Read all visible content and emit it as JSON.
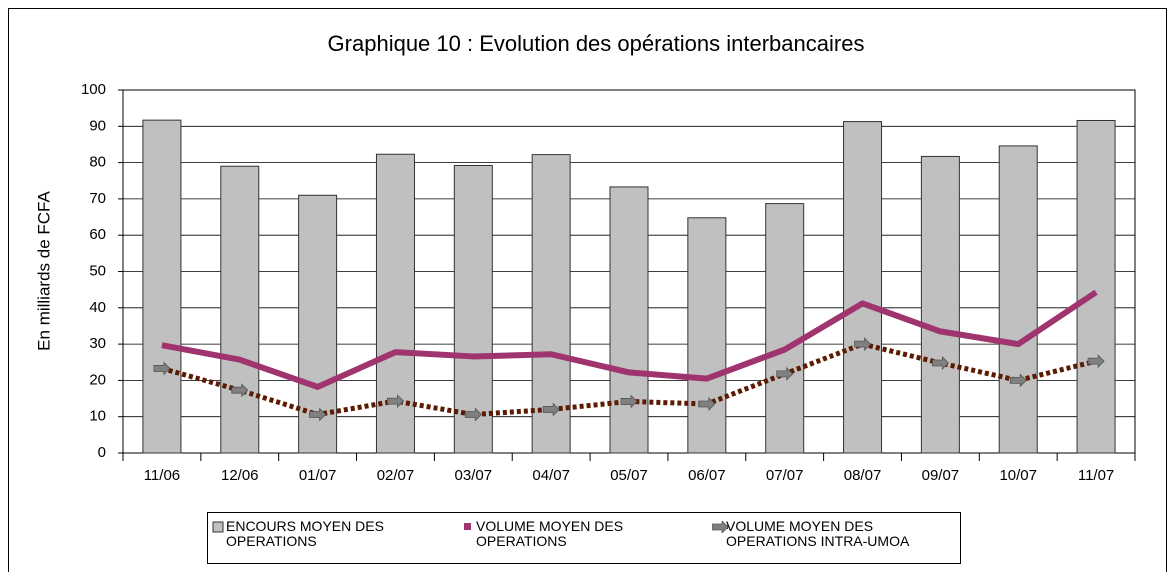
{
  "chart_data": {
    "type": "bar",
    "title": "Graphique 10 : Evolution des opérations interbancaires",
    "y_label": "En milliards de FCFA",
    "categories": [
      "11/06",
      "12/06",
      "01/07",
      "02/07",
      "03/07",
      "04/07",
      "05/07",
      "06/07",
      "07/07",
      "08/07",
      "09/07",
      "10/07",
      "11/07"
    ],
    "series": [
      {
        "name": "ENCOURS MOYEN DES OPERATIONS",
        "type": "bar",
        "color": "#c0c0c0",
        "values": [
          91.7,
          79,
          71,
          82.3,
          79.2,
          82.2,
          73.3,
          64.8,
          68.7,
          91.3,
          81.7,
          84.6,
          91.6
        ]
      },
      {
        "name": "VOLUME MOYEN DES OPERATIONS",
        "type": "line",
        "color": "#a0346e",
        "values": [
          29.7,
          25.7,
          18.2,
          27.8,
          26.6,
          27.2,
          22.2,
          20.5,
          28.5,
          41.2,
          33.5,
          30,
          44.3
        ]
      },
      {
        "name": "VOLUME MOYEN DES OPERATIONS INTRA-UMOA",
        "type": "dashed",
        "color": "#5c1a00",
        "values": [
          23.3,
          17.3,
          10.6,
          14.3,
          10.6,
          12,
          14.2,
          13.5,
          21.8,
          30,
          24.8,
          20,
          25.3
        ]
      }
    ],
    "ylim": [
      0,
      100
    ],
    "yticks": [
      0,
      10,
      20,
      30,
      40,
      50,
      60,
      70,
      80,
      90,
      100
    ],
    "grid": true
  }
}
